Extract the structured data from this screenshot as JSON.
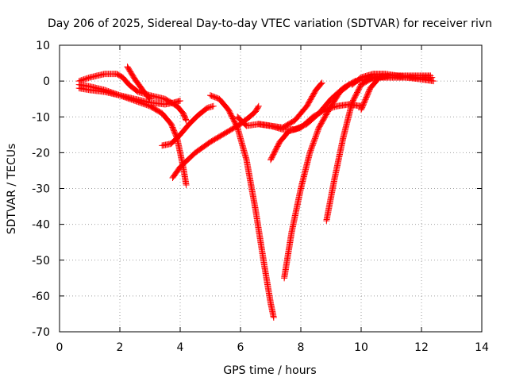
{
  "chart_data": {
    "type": "scatter",
    "title": "Day 206 of 2025, Sidereal Day-to-day VTEC variation (SDTVAR) for receiver rivn",
    "xlabel": "GPS time / hours",
    "ylabel": "SDTVAR / TECUs",
    "xlim": [
      0,
      14
    ],
    "ylim": [
      -70,
      10
    ],
    "xticks": [
      0,
      2,
      4,
      6,
      8,
      10,
      12,
      14
    ],
    "yticks": [
      -70,
      -60,
      -50,
      -40,
      -30,
      -20,
      -10,
      0,
      10
    ],
    "grid": true,
    "marker": "plus",
    "color": "#ff0000",
    "series": [
      {
        "x": [
          0.65,
          1.0,
          1.5,
          1.9,
          2.1,
          2.3,
          2.6,
          3.0,
          3.5,
          3.9,
          4.1,
          4.2
        ],
        "y": [
          0,
          1.0,
          2.0,
          2.0,
          1.0,
          -1.0,
          -3.0,
          -4.0,
          -5.0,
          -7.0,
          -9.0,
          -11.0
        ]
      },
      {
        "x": [
          0.65,
          1.0,
          1.5,
          2.0,
          2.5,
          3.0,
          3.4,
          3.7,
          3.9,
          4.0,
          4.1,
          4.2
        ],
        "y": [
          -1.0,
          -1.5,
          -2.5,
          -4.0,
          -5.5,
          -7.0,
          -9.0,
          -12.0,
          -16.0,
          -20.0,
          -24.0,
          -29.0
        ]
      },
      {
        "x": [
          0.65,
          1.0,
          1.5,
          2.0,
          2.5,
          3.0,
          3.5,
          3.8,
          4.0
        ],
        "y": [
          -2.0,
          -2.5,
          -3.0,
          -4.0,
          -5.0,
          -6.0,
          -6.5,
          -6.0,
          -5.5
        ]
      },
      {
        "x": [
          2.25,
          2.5,
          2.8,
          3.0
        ],
        "y": [
          4.0,
          0.5,
          -3.0,
          -5.0
        ]
      },
      {
        "x": [
          3.4,
          3.7,
          4.0,
          4.3,
          4.6,
          4.9,
          5.1
        ],
        "y": [
          -18.0,
          -17.5,
          -15.0,
          -12.0,
          -9.5,
          -7.5,
          -7.0
        ]
      },
      {
        "x": [
          3.75,
          4.0,
          4.5,
          5.0,
          5.5,
          6.0,
          6.3,
          6.5,
          6.6
        ],
        "y": [
          -27.0,
          -24.0,
          -20.0,
          -17.0,
          -14.5,
          -12.0,
          -10.0,
          -8.5,
          -7.0
        ]
      },
      {
        "x": [
          5.0,
          5.3,
          5.6,
          5.9,
          6.2,
          6.5,
          6.8,
          7.0,
          7.1
        ],
        "y": [
          -4.0,
          -5.0,
          -8.0,
          -13.0,
          -22.0,
          -36.0,
          -52.0,
          -62.0,
          -66.0
        ]
      },
      {
        "x": [
          5.9,
          6.2,
          6.6,
          7.0,
          7.4,
          7.8,
          8.2,
          8.5,
          8.7
        ],
        "y": [
          -10.0,
          -12.5,
          -12.0,
          -12.5,
          -13.0,
          -11.0,
          -7.0,
          -2.5,
          -0.5
        ]
      },
      {
        "x": [
          6.6,
          7.0,
          7.4,
          7.8,
          8.2,
          8.6,
          9.0,
          9.4,
          9.8,
          10.2,
          10.5,
          11.0,
          11.5,
          12.0,
          12.3
        ],
        "y": [
          -12.0,
          -12.5,
          -13.5,
          -13.5,
          -12.0,
          -9.0,
          -5.0,
          -2.0,
          0,
          0.5,
          1.0,
          1.0,
          1.0,
          1.0,
          1.0
        ]
      },
      {
        "x": [
          7.0,
          7.3,
          7.6,
          8.0,
          8.4,
          8.8,
          9.2,
          9.6,
          10.0
        ],
        "y": [
          -22.0,
          -17.0,
          -14.0,
          -13.0,
          -10.0,
          -8.0,
          -7.0,
          -6.5,
          -7.0
        ]
      },
      {
        "x": [
          7.45,
          7.7,
          8.0,
          8.3,
          8.6,
          9.0,
          9.3,
          9.6
        ],
        "y": [
          -55.0,
          -42.0,
          -30.0,
          -20.0,
          -13.0,
          -7.0,
          -3.0,
          -1.0
        ]
      },
      {
        "x": [
          8.85,
          9.1,
          9.4,
          9.7,
          10.0,
          10.4,
          10.8,
          11.5,
          12.3
        ],
        "y": [
          -39.0,
          -28.0,
          -16.0,
          -6.0,
          -1.0,
          1.0,
          1.5,
          1.5,
          1.5
        ]
      },
      {
        "x": [
          9.7,
          10.0,
          10.4,
          10.8,
          11.2,
          11.8,
          12.35
        ],
        "y": [
          -1.0,
          1.0,
          2.0,
          2.0,
          1.5,
          1.0,
          1.0
        ]
      },
      {
        "x": [
          10.0,
          10.3,
          10.6,
          11.0,
          11.5,
          12.0,
          12.4
        ],
        "y": [
          -8.0,
          -2.0,
          1.0,
          1.5,
          1.0,
          0.5,
          0
        ]
      }
    ]
  }
}
